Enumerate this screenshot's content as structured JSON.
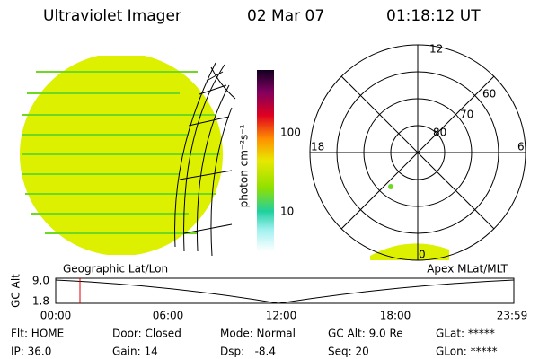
{
  "header": {
    "instrument": "Ultraviolet Imager",
    "date": "02 Mar 07",
    "time": "01:18:12 UT"
  },
  "colorbar": {
    "label": "photon cm⁻²s⁻¹",
    "ticks": [
      "100",
      "10"
    ]
  },
  "polar_plot": {
    "mlt_labels": [
      "12",
      "18",
      "6",
      "0"
    ],
    "mlat_labels": [
      "60",
      "70",
      "80"
    ]
  },
  "altitude_plot": {
    "left_title": "Geographic Lat/Lon",
    "right_title": "Apex MLat/MLT",
    "axis_label": "GC Alt",
    "yticks": [
      "9.0",
      "1.8"
    ],
    "xticks": [
      "00:00",
      "06:00",
      "12:00",
      "18:00",
      "23:59"
    ]
  },
  "status": [
    [
      "Flt: HOME",
      "Door: Closed",
      "Mode: Normal",
      "GC Alt: 9.0 Re",
      "GLat: *****"
    ],
    [
      "IP: 36.0",
      "Gain: 14",
      "Dsp:   -8.4",
      "Seq: 20",
      "GLon: *****"
    ]
  ]
}
